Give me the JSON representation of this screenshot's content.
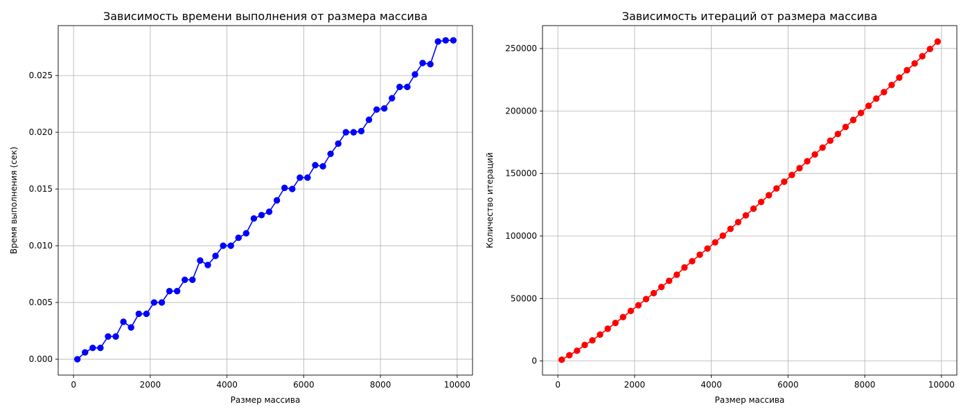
{
  "figure": {
    "background": "#ffffff",
    "grid_color": "#b0b0b0"
  },
  "chart_data": [
    {
      "type": "line",
      "title": "Зависимость времени выполнения от размера массива",
      "xlabel": "Размер массива",
      "ylabel": "Время выполнения (сек)",
      "xlim": [
        -400,
        10400
      ],
      "ylim": [
        -0.0014,
        0.0294
      ],
      "xticks": [
        0,
        2000,
        4000,
        6000,
        8000,
        10000
      ],
      "xtick_labels": [
        "0",
        "2000",
        "4000",
        "6000",
        "8000",
        "10000"
      ],
      "yticks": [
        0,
        0.005,
        0.01,
        0.015,
        0.02,
        0.025
      ],
      "ytick_labels": [
        "0.000",
        "0.005",
        "0.010",
        "0.015",
        "0.020",
        "0.025"
      ],
      "grid": true,
      "marker": "circle",
      "color": "#0000ff",
      "x": [
        100,
        300,
        500,
        700,
        900,
        1100,
        1300,
        1500,
        1700,
        1900,
        2100,
        2300,
        2500,
        2700,
        2900,
        3100,
        3300,
        3500,
        3700,
        3900,
        4100,
        4300,
        4500,
        4700,
        4900,
        5100,
        5300,
        5500,
        5700,
        5900,
        6100,
        6300,
        6500,
        6700,
        6900,
        7100,
        7300,
        7500,
        7700,
        7900,
        8100,
        8300,
        8500,
        8700,
        8900,
        9100,
        9300,
        9500,
        9700,
        9900
      ],
      "y": [
        0.0,
        0.0006,
        0.001,
        0.001,
        0.002,
        0.002,
        0.0033,
        0.0028,
        0.004,
        0.004,
        0.005,
        0.005,
        0.006,
        0.006,
        0.007,
        0.007,
        0.0087,
        0.0083,
        0.0091,
        0.01,
        0.01,
        0.0107,
        0.0111,
        0.0124,
        0.0127,
        0.013,
        0.014,
        0.0151,
        0.015,
        0.016,
        0.016,
        0.0171,
        0.017,
        0.0181,
        0.019,
        0.02,
        0.02,
        0.0201,
        0.0211,
        0.022,
        0.0221,
        0.023,
        0.024,
        0.024,
        0.0251,
        0.0261,
        0.026,
        0.028,
        0.0281,
        0.0281
      ]
    },
    {
      "type": "line",
      "title": "Зависимость итераций от размера массива",
      "xlabel": "Размер массива",
      "ylabel": "Количество итераций",
      "xlim": [
        -400,
        10400
      ],
      "ylim": [
        -11300,
        268300
      ],
      "xticks": [
        0,
        2000,
        4000,
        6000,
        8000,
        10000
      ],
      "xtick_labels": [
        "0",
        "2000",
        "4000",
        "6000",
        "8000",
        "10000"
      ],
      "yticks": [
        0,
        50000,
        100000,
        150000,
        200000,
        250000
      ],
      "ytick_labels": [
        "0",
        "50000",
        "100000",
        "150000",
        "200000",
        "250000"
      ],
      "grid": true,
      "marker": "circle",
      "color": "#ff0000",
      "x": [
        100,
        300,
        500,
        700,
        900,
        1100,
        1300,
        1500,
        1700,
        1900,
        2100,
        2300,
        2500,
        2700,
        2900,
        3100,
        3300,
        3500,
        3700,
        3900,
        4100,
        4300,
        4500,
        4700,
        4900,
        5100,
        5300,
        5500,
        5700,
        5900,
        6100,
        6300,
        6500,
        6700,
        6900,
        7100,
        7300,
        7500,
        7700,
        7900,
        8100,
        8300,
        8500,
        8700,
        8900,
        9100,
        9300,
        9500,
        9700,
        9900
      ],
      "y": [
        1000,
        4600,
        8200,
        12800,
        16500,
        21100,
        25800,
        30400,
        35100,
        40000,
        44600,
        49500,
        54300,
        59200,
        64100,
        69000,
        74800,
        79800,
        85000,
        89900,
        94900,
        100200,
        105700,
        111100,
        116500,
        121800,
        127200,
        132600,
        138000,
        143400,
        148800,
        154300,
        159800,
        165200,
        170700,
        176200,
        181600,
        187200,
        192800,
        198400,
        204100,
        209900,
        215100,
        220800,
        226700,
        232600,
        238000,
        243800,
        249600,
        255500
      ]
    }
  ]
}
